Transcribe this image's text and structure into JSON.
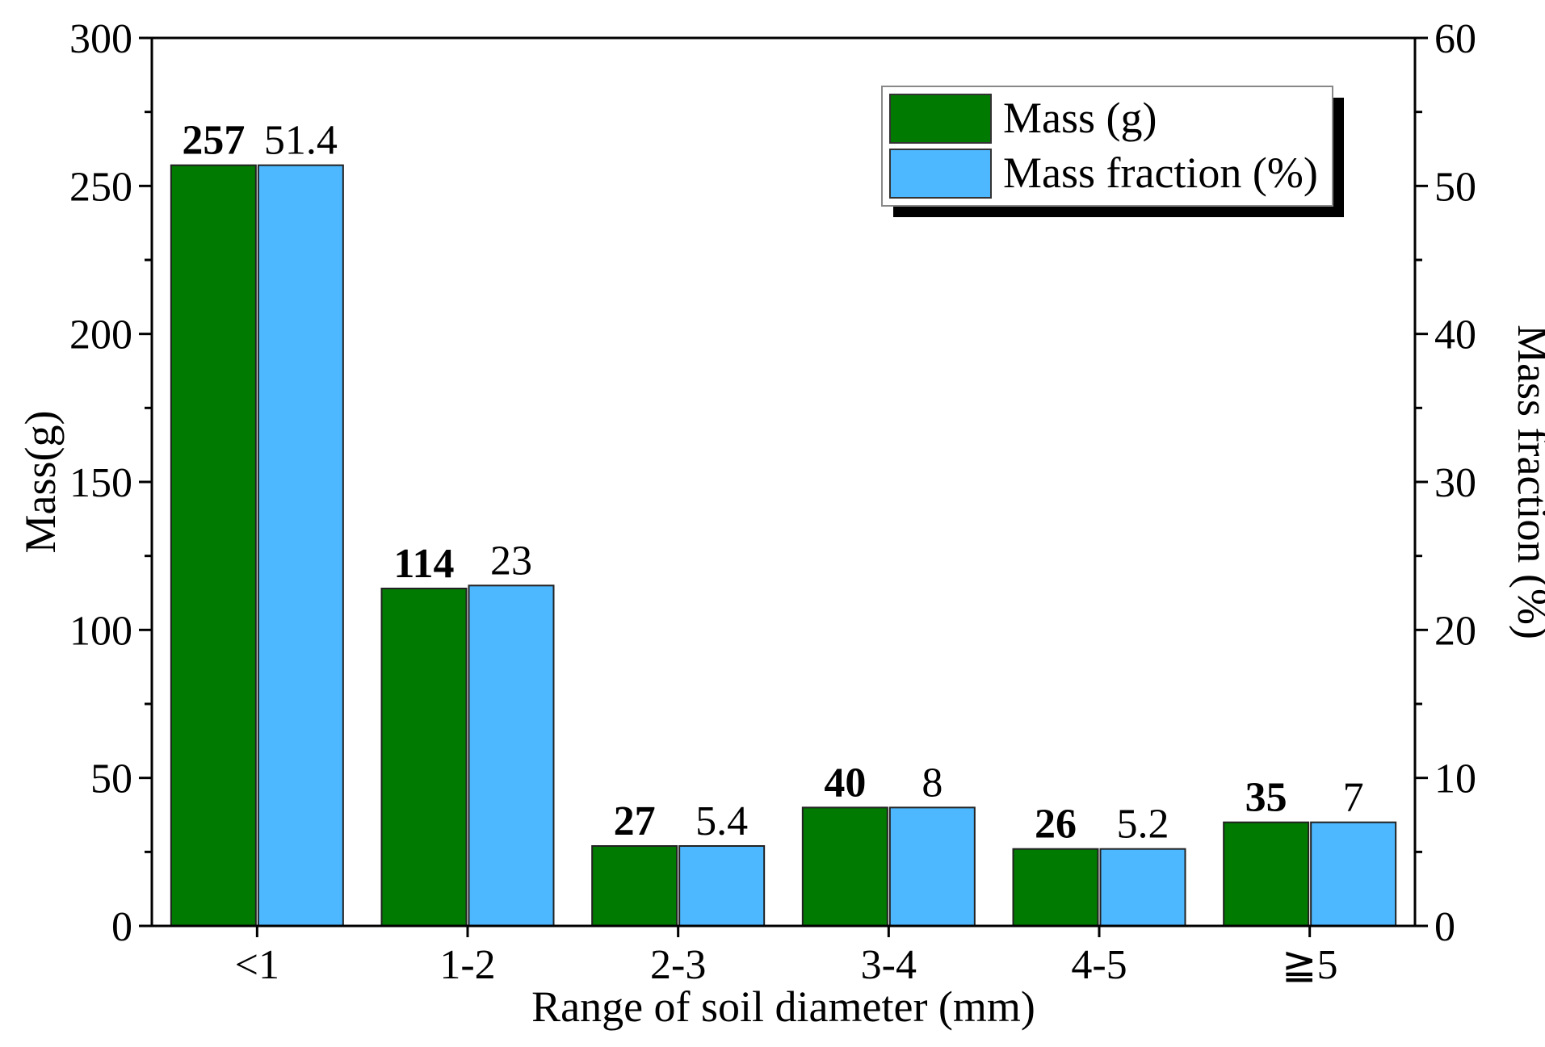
{
  "chart_data": {
    "type": "bar",
    "categories": [
      "<1",
      "1-2",
      "2-3",
      "3-4",
      "4-5",
      "≧5"
    ],
    "series": [
      {
        "name": "Mass (g)",
        "axis": "left",
        "values": [
          257,
          114,
          27,
          40,
          26,
          35
        ],
        "labels": [
          "257",
          "114",
          "27",
          "40",
          "26",
          "35"
        ],
        "color": "#007a00"
      },
      {
        "name": "Mass fraction (%)",
        "axis": "right",
        "values": [
          51.4,
          23,
          5.4,
          8,
          5.2,
          7
        ],
        "labels": [
          "51.4",
          "23",
          "5.4",
          "8",
          "5.2",
          "7"
        ],
        "color": "#4db8ff"
      }
    ],
    "xlabel": "Range of soil diameter (mm)",
    "ylabel": "Mass(g)",
    "y2label": "Mass fraction (%)",
    "ylim": [
      0,
      300
    ],
    "y2lim": [
      0,
      60
    ],
    "yticks": [
      "0",
      "50",
      "100",
      "150",
      "200",
      "250",
      "300"
    ],
    "y2ticks": [
      "0",
      "10",
      "20",
      "30",
      "40",
      "50",
      "60"
    ],
    "legend_position": "top-right",
    "grid": false
  }
}
